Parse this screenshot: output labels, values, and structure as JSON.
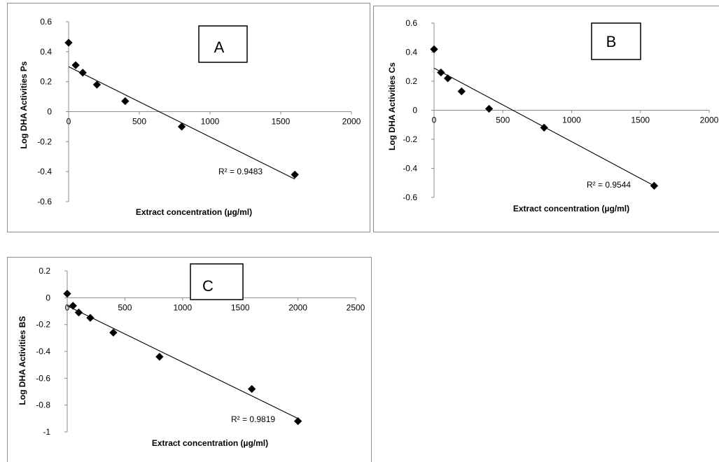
{
  "chart_data": [
    {
      "id": "A",
      "type": "scatter",
      "panel_label": "A",
      "xlabel": "Extract concentration (µg/ml)",
      "ylabel": "Log DHA Activities Ps",
      "xlim": [
        0,
        2000
      ],
      "ylim": [
        -0.6,
        0.6
      ],
      "xticks": [
        0,
        500,
        1000,
        1500,
        2000
      ],
      "yticks": [
        0.6,
        0.4,
        0.2,
        0,
        -0.2,
        -0.4,
        -0.6
      ],
      "x": [
        0,
        50,
        100,
        200,
        400,
        800,
        1600
      ],
      "y": [
        0.46,
        0.31,
        0.26,
        0.18,
        0.07,
        -0.1,
        -0.42
      ],
      "trendline": {
        "x": [
          0,
          1600
        ],
        "y": [
          0.3,
          -0.45
        ]
      },
      "r_squared_label": "R² = 0.9483",
      "marker": "diamond",
      "grid": false
    },
    {
      "id": "B",
      "type": "scatter",
      "panel_label": "B",
      "xlabel": "Extract concentration (µg/ml)",
      "ylabel": "Log DHA Activities Cs",
      "xlim": [
        0,
        2000
      ],
      "ylim": [
        -0.6,
        0.6
      ],
      "xticks": [
        0,
        500,
        1000,
        1500,
        2000
      ],
      "yticks": [
        0.6,
        0.4,
        0.2,
        0,
        -0.2,
        -0.4,
        -0.6
      ],
      "x": [
        0,
        50,
        100,
        200,
        400,
        800,
        1600
      ],
      "y": [
        0.42,
        0.26,
        0.22,
        0.13,
        0.01,
        -0.12,
        -0.52
      ],
      "trendline": {
        "x": [
          0,
          1600
        ],
        "y": [
          0.29,
          -0.52
        ]
      },
      "r_squared_label": "R² = 0.9544",
      "marker": "diamond",
      "grid": false
    },
    {
      "id": "C",
      "type": "scatter",
      "panel_label": "C",
      "xlabel": "Extract concentration (µg/ml)",
      "ylabel": "Log DHA Activities BS",
      "xlim": [
        0,
        2500
      ],
      "ylim": [
        -1,
        0.2
      ],
      "xticks": [
        0,
        500,
        1000,
        1500,
        2000,
        2500
      ],
      "yticks": [
        0.2,
        0,
        -0.2,
        -0.4,
        -0.6,
        -0.8,
        -1
      ],
      "x": [
        0,
        50,
        100,
        200,
        400,
        800,
        1600,
        2000
      ],
      "y": [
        0.03,
        -0.06,
        -0.11,
        -0.15,
        -0.26,
        -0.44,
        -0.68,
        -0.92
      ],
      "trendline": {
        "x": [
          0,
          2000
        ],
        "y": [
          -0.06,
          -0.9
        ]
      },
      "r_squared_label": "R² = 0.9819",
      "marker": "diamond",
      "grid": false
    }
  ]
}
